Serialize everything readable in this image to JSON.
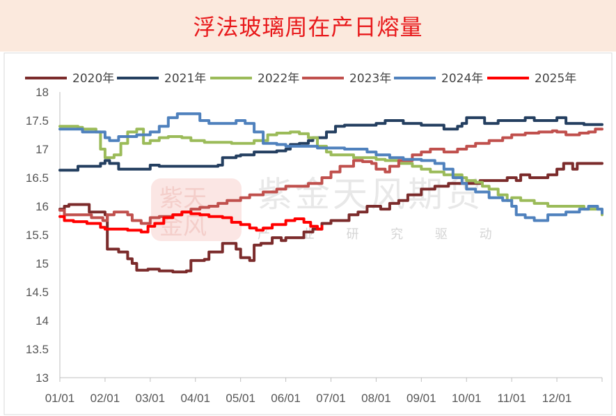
{
  "title": "浮法玻璃周在产日熔量",
  "watermark": {
    "brand": "紫金天风期货",
    "slogan": "产 业 研 究 驱 动",
    "seal_icon": "seal-icon"
  },
  "chart_data": {
    "type": "line",
    "ylim": [
      13,
      18
    ],
    "yticks": [
      13,
      13.5,
      14,
      14.5,
      15,
      15.5,
      16,
      16.5,
      17,
      17.5,
      18
    ],
    "xlim": [
      0,
      12
    ],
    "xticks": [
      "01/01",
      "02/01",
      "03/01",
      "04/01",
      "05/01",
      "06/01",
      "07/01",
      "08/01",
      "09/01",
      "10/01",
      "11/01",
      "12/01"
    ],
    "legend": "top",
    "series": [
      {
        "name": "2020年",
        "color": "#7b2b2b",
        "points": [
          [
            0,
            15.95
          ],
          [
            0.1,
            16.0
          ],
          [
            0.2,
            16.03
          ],
          [
            0.6,
            16.03
          ],
          [
            0.65,
            15.9
          ],
          [
            0.95,
            15.9
          ],
          [
            1.0,
            15.85
          ],
          [
            1.05,
            15.25
          ],
          [
            1.3,
            15.2
          ],
          [
            1.5,
            15.08
          ],
          [
            1.6,
            15.0
          ],
          [
            1.7,
            14.88
          ],
          [
            1.95,
            14.9
          ],
          [
            2.2,
            14.87
          ],
          [
            2.5,
            14.85
          ],
          [
            2.8,
            14.87
          ],
          [
            2.9,
            15.05
          ],
          [
            3.2,
            15.07
          ],
          [
            3.3,
            15.2
          ],
          [
            3.6,
            15.35
          ],
          [
            3.9,
            15.25
          ],
          [
            4.0,
            15.1
          ],
          [
            4.2,
            15.05
          ],
          [
            4.3,
            15.32
          ],
          [
            4.45,
            15.35
          ],
          [
            4.7,
            15.45
          ],
          [
            4.9,
            15.4
          ],
          [
            5.0,
            15.45
          ],
          [
            5.2,
            15.45
          ],
          [
            5.4,
            15.55
          ],
          [
            5.6,
            15.6
          ],
          [
            5.8,
            15.7
          ],
          [
            6.0,
            15.75
          ],
          [
            6.2,
            15.75
          ],
          [
            6.4,
            15.85
          ],
          [
            6.6,
            15.9
          ],
          [
            6.8,
            16.0
          ],
          [
            7.0,
            16.0
          ],
          [
            7.1,
            15.95
          ],
          [
            7.3,
            16.05
          ],
          [
            7.5,
            16.1
          ],
          [
            7.7,
            16.2
          ],
          [
            8.0,
            16.3
          ],
          [
            8.3,
            16.35
          ],
          [
            8.6,
            16.4
          ],
          [
            9.0,
            16.4
          ],
          [
            9.3,
            16.45
          ],
          [
            9.6,
            16.45
          ],
          [
            9.9,
            16.5
          ],
          [
            10.1,
            16.45
          ],
          [
            10.2,
            16.55
          ],
          [
            10.4,
            16.5
          ],
          [
            10.6,
            16.5
          ],
          [
            10.8,
            16.55
          ],
          [
            11.0,
            16.65
          ],
          [
            11.15,
            16.75
          ],
          [
            11.3,
            16.75
          ],
          [
            11.35,
            16.65
          ],
          [
            11.45,
            16.75
          ],
          [
            12.0,
            16.75
          ]
        ]
      },
      {
        "name": "2021年",
        "color": "#243f60",
        "points": [
          [
            0,
            16.63
          ],
          [
            0.3,
            16.63
          ],
          [
            0.4,
            16.7
          ],
          [
            0.9,
            16.75
          ],
          [
            1.0,
            16.8
          ],
          [
            1.1,
            16.75
          ],
          [
            1.3,
            16.65
          ],
          [
            1.8,
            16.65
          ],
          [
            2.0,
            16.72
          ],
          [
            2.2,
            16.7
          ],
          [
            3.0,
            16.7
          ],
          [
            3.5,
            16.72
          ],
          [
            3.6,
            16.85
          ],
          [
            3.9,
            16.88
          ],
          [
            4.0,
            16.9
          ],
          [
            4.3,
            16.95
          ],
          [
            4.8,
            16.97
          ],
          [
            5.0,
            17.0
          ],
          [
            5.1,
            17.08
          ],
          [
            5.3,
            17.1
          ],
          [
            5.5,
            17.15
          ],
          [
            5.6,
            17.2
          ],
          [
            5.9,
            17.3
          ],
          [
            6.1,
            17.4
          ],
          [
            6.3,
            17.42
          ],
          [
            6.8,
            17.42
          ],
          [
            7.0,
            17.45
          ],
          [
            7.2,
            17.5
          ],
          [
            7.5,
            17.5
          ],
          [
            7.6,
            17.45
          ],
          [
            8.0,
            17.42
          ],
          [
            8.5,
            17.35
          ],
          [
            8.8,
            17.4
          ],
          [
            8.9,
            17.45
          ],
          [
            9.0,
            17.55
          ],
          [
            9.2,
            17.55
          ],
          [
            9.4,
            17.45
          ],
          [
            9.7,
            17.5
          ],
          [
            10.0,
            17.5
          ],
          [
            10.3,
            17.55
          ],
          [
            10.5,
            17.5
          ],
          [
            10.9,
            17.5
          ],
          [
            11.0,
            17.55
          ],
          [
            11.2,
            17.45
          ],
          [
            11.6,
            17.43
          ],
          [
            12.0,
            17.43
          ]
        ]
      },
      {
        "name": "2022年",
        "color": "#9bbb59",
        "points": [
          [
            0,
            17.4
          ],
          [
            0.4,
            17.38
          ],
          [
            0.5,
            17.35
          ],
          [
            0.8,
            17.3
          ],
          [
            0.9,
            17.0
          ],
          [
            1.0,
            16.85
          ],
          [
            1.2,
            16.9
          ],
          [
            1.35,
            17.1
          ],
          [
            1.5,
            17.3
          ],
          [
            1.7,
            17.35
          ],
          [
            1.85,
            17.1
          ],
          [
            2.0,
            17.15
          ],
          [
            2.2,
            17.2
          ],
          [
            2.4,
            17.22
          ],
          [
            2.7,
            17.2
          ],
          [
            2.9,
            17.15
          ],
          [
            3.2,
            17.12
          ],
          [
            3.6,
            17.12
          ],
          [
            3.8,
            17.1
          ],
          [
            4.0,
            17.1
          ],
          [
            4.3,
            17.15
          ],
          [
            4.6,
            17.25
          ],
          [
            4.8,
            17.28
          ],
          [
            5.1,
            17.3
          ],
          [
            5.3,
            17.27
          ],
          [
            5.5,
            17.2
          ],
          [
            5.7,
            17.05
          ],
          [
            5.9,
            16.95
          ],
          [
            6.0,
            16.9
          ],
          [
            6.3,
            16.9
          ],
          [
            6.5,
            16.85
          ],
          [
            6.8,
            16.85
          ],
          [
            7.0,
            16.82
          ],
          [
            7.2,
            16.8
          ],
          [
            7.5,
            16.75
          ],
          [
            7.8,
            16.7
          ],
          [
            8.0,
            16.65
          ],
          [
            8.2,
            16.6
          ],
          [
            8.5,
            16.55
          ],
          [
            8.7,
            16.55
          ],
          [
            8.9,
            16.5
          ],
          [
            9.0,
            16.45
          ],
          [
            9.2,
            16.42
          ],
          [
            9.35,
            16.35
          ],
          [
            9.5,
            16.3
          ],
          [
            9.7,
            16.2
          ],
          [
            9.9,
            16.1
          ],
          [
            10.0,
            16.15
          ],
          [
            10.2,
            16.1
          ],
          [
            10.5,
            16.05
          ],
          [
            10.8,
            16.0
          ],
          [
            11.0,
            16.0
          ],
          [
            11.3,
            16.0
          ],
          [
            11.6,
            15.95
          ],
          [
            11.8,
            15.95
          ],
          [
            12.0,
            15.85
          ]
        ]
      },
      {
        "name": "2023年",
        "color": "#c0504d",
        "points": [
          [
            0,
            15.93
          ],
          [
            0.1,
            15.85
          ],
          [
            0.3,
            15.85
          ],
          [
            0.7,
            15.8
          ],
          [
            0.95,
            15.75
          ],
          [
            1.05,
            15.85
          ],
          [
            1.2,
            15.9
          ],
          [
            1.5,
            15.85
          ],
          [
            1.6,
            15.75
          ],
          [
            1.8,
            15.7
          ],
          [
            2.0,
            15.8
          ],
          [
            2.2,
            15.82
          ],
          [
            2.5,
            15.85
          ],
          [
            2.7,
            15.9
          ],
          [
            2.9,
            15.95
          ],
          [
            3.1,
            15.98
          ],
          [
            3.3,
            16.0
          ],
          [
            3.5,
            16.05
          ],
          [
            3.7,
            16.1
          ],
          [
            4.0,
            16.15
          ],
          [
            4.2,
            16.2
          ],
          [
            4.5,
            16.25
          ],
          [
            4.8,
            16.3
          ],
          [
            5.0,
            16.35
          ],
          [
            5.3,
            16.35
          ],
          [
            5.5,
            16.4
          ],
          [
            5.8,
            16.5
          ],
          [
            6.0,
            16.6
          ],
          [
            6.2,
            16.7
          ],
          [
            6.5,
            16.8
          ],
          [
            6.7,
            16.78
          ],
          [
            6.9,
            16.75
          ],
          [
            7.0,
            16.65
          ],
          [
            7.2,
            16.6
          ],
          [
            7.3,
            16.7
          ],
          [
            7.5,
            16.8
          ],
          [
            7.8,
            16.9
          ],
          [
            8.0,
            16.95
          ],
          [
            8.2,
            17.0
          ],
          [
            8.5,
            16.95
          ],
          [
            8.8,
            17.0
          ],
          [
            9.0,
            17.05
          ],
          [
            9.2,
            17.1
          ],
          [
            9.5,
            17.15
          ],
          [
            9.8,
            17.2
          ],
          [
            10.0,
            17.25
          ],
          [
            10.3,
            17.28
          ],
          [
            10.6,
            17.3
          ],
          [
            10.9,
            17.32
          ],
          [
            11.0,
            17.3
          ],
          [
            11.2,
            17.25
          ],
          [
            11.5,
            17.28
          ],
          [
            11.7,
            17.3
          ],
          [
            11.85,
            17.35
          ],
          [
            12.0,
            17.35
          ]
        ]
      },
      {
        "name": "2024年",
        "color": "#4f81bd",
        "points": [
          [
            0,
            17.35
          ],
          [
            0.5,
            17.3
          ],
          [
            0.9,
            17.3
          ],
          [
            1.0,
            17.2
          ],
          [
            1.1,
            17.15
          ],
          [
            1.3,
            17.22
          ],
          [
            1.7,
            17.25
          ],
          [
            2.0,
            17.3
          ],
          [
            2.2,
            17.4
          ],
          [
            2.4,
            17.55
          ],
          [
            2.6,
            17.62
          ],
          [
            2.9,
            17.62
          ],
          [
            3.1,
            17.5
          ],
          [
            3.3,
            17.45
          ],
          [
            3.7,
            17.45
          ],
          [
            3.9,
            17.5
          ],
          [
            4.1,
            17.45
          ],
          [
            4.3,
            17.3
          ],
          [
            4.5,
            17.1
          ],
          [
            4.8,
            17.08
          ],
          [
            5.0,
            17.05
          ],
          [
            5.3,
            17.05
          ],
          [
            5.5,
            17.05
          ],
          [
            5.7,
            17.02
          ],
          [
            6.0,
            17.02
          ],
          [
            6.3,
            17.0
          ],
          [
            6.5,
            17.0
          ],
          [
            6.8,
            16.95
          ],
          [
            7.0,
            16.9
          ],
          [
            7.3,
            16.85
          ],
          [
            7.6,
            16.82
          ],
          [
            8.0,
            16.8
          ],
          [
            8.3,
            16.75
          ],
          [
            8.5,
            16.65
          ],
          [
            8.7,
            16.5
          ],
          [
            8.9,
            16.4
          ],
          [
            9.0,
            16.3
          ],
          [
            9.2,
            16.25
          ],
          [
            9.5,
            16.15
          ],
          [
            9.8,
            16.1
          ],
          [
            10.0,
            16.0
          ],
          [
            10.1,
            15.85
          ],
          [
            10.3,
            15.8
          ],
          [
            10.5,
            15.75
          ],
          [
            10.8,
            15.85
          ],
          [
            11.0,
            15.85
          ],
          [
            11.2,
            15.9
          ],
          [
            11.5,
            15.95
          ],
          [
            11.7,
            16.0
          ],
          [
            11.9,
            15.95
          ],
          [
            12.0,
            15.88
          ]
        ]
      },
      {
        "name": "2025年",
        "color": "#ff0000",
        "points": [
          [
            0,
            15.82
          ],
          [
            0.1,
            15.75
          ],
          [
            0.3,
            15.73
          ],
          [
            0.6,
            15.7
          ],
          [
            0.9,
            15.63
          ],
          [
            1.0,
            15.6
          ],
          [
            1.3,
            15.6
          ],
          [
            1.5,
            15.58
          ],
          [
            1.8,
            15.55
          ],
          [
            1.95,
            15.65
          ],
          [
            2.1,
            15.7
          ],
          [
            2.3,
            15.8
          ],
          [
            2.5,
            15.85
          ],
          [
            2.7,
            15.9
          ],
          [
            2.9,
            15.87
          ],
          [
            3.1,
            15.85
          ],
          [
            3.3,
            15.82
          ],
          [
            3.6,
            15.8
          ],
          [
            3.8,
            15.72
          ],
          [
            4.0,
            15.68
          ],
          [
            4.2,
            15.62
          ],
          [
            4.35,
            15.58
          ],
          [
            4.5,
            15.62
          ],
          [
            4.7,
            15.68
          ],
          [
            5.0,
            15.75
          ],
          [
            5.2,
            15.78
          ],
          [
            5.4,
            15.72
          ],
          [
            5.55,
            15.65
          ],
          [
            5.7,
            15.6
          ],
          [
            5.8,
            15.65
          ]
        ]
      }
    ]
  }
}
